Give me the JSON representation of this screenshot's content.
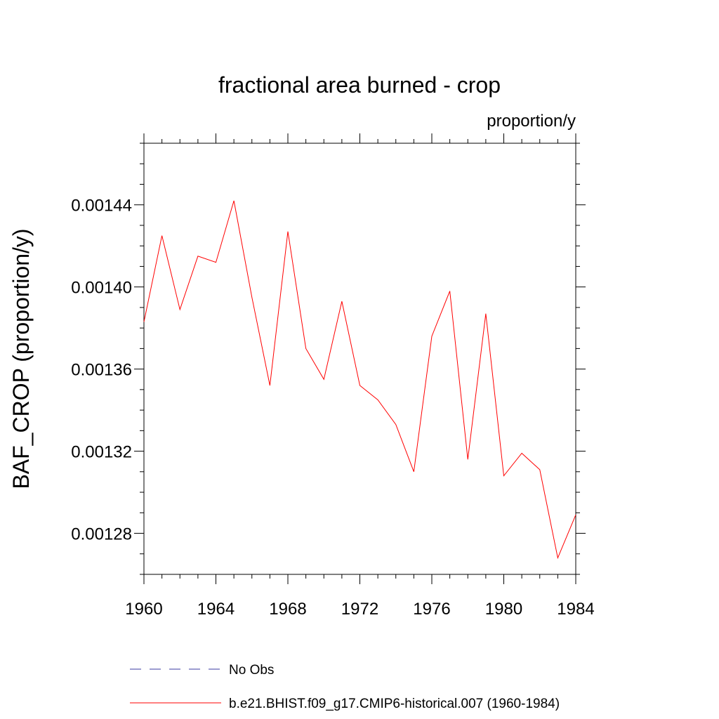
{
  "chart_data": {
    "type": "line",
    "title": "fractional area burned - crop",
    "units": "proportion/y",
    "ylabel": "BAF_CROP  (proportion/y)",
    "xlabel": "",
    "xlim": [
      1960,
      1984
    ],
    "ylim": [
      0.00126,
      0.00147
    ],
    "x_ticks": [
      1960,
      1964,
      1968,
      1972,
      1976,
      1980,
      1984
    ],
    "x_tick_labels": [
      "1960",
      "1964",
      "1968",
      "1972",
      "1976",
      "1980",
      "1984"
    ],
    "y_ticks": [
      0.00128,
      0.00132,
      0.00136,
      0.0014,
      0.00144
    ],
    "y_tick_labels": [
      "0.00128",
      "0.00132",
      "0.00136",
      "0.00140",
      "0.00144"
    ],
    "grid": false,
    "series": [
      {
        "name": "No Obs",
        "color": "#3a3aa0",
        "dash": "dashed",
        "x": [],
        "values": []
      },
      {
        "name": "b.e21.BHIST.f09_g17.CMIP6-historical.007 (1960-1984)",
        "color": "#ff0000",
        "dash": "solid",
        "x": [
          1960,
          1961,
          1962,
          1963,
          1964,
          1965,
          1966,
          1967,
          1968,
          1969,
          1970,
          1971,
          1972,
          1973,
          1974,
          1975,
          1976,
          1977,
          1978,
          1979,
          1980,
          1981,
          1982,
          1983,
          1984
        ],
        "values": [
          0.001383,
          0.001425,
          0.001389,
          0.001415,
          0.001412,
          0.001442,
          0.001395,
          0.001352,
          0.001427,
          0.00137,
          0.001355,
          0.001393,
          0.001352,
          0.001345,
          0.001333,
          0.00131,
          0.001376,
          0.001398,
          0.001316,
          0.001387,
          0.001308,
          0.001319,
          0.001311,
          0.001268,
          0.001289
        ]
      }
    ],
    "legend": "bottom"
  }
}
